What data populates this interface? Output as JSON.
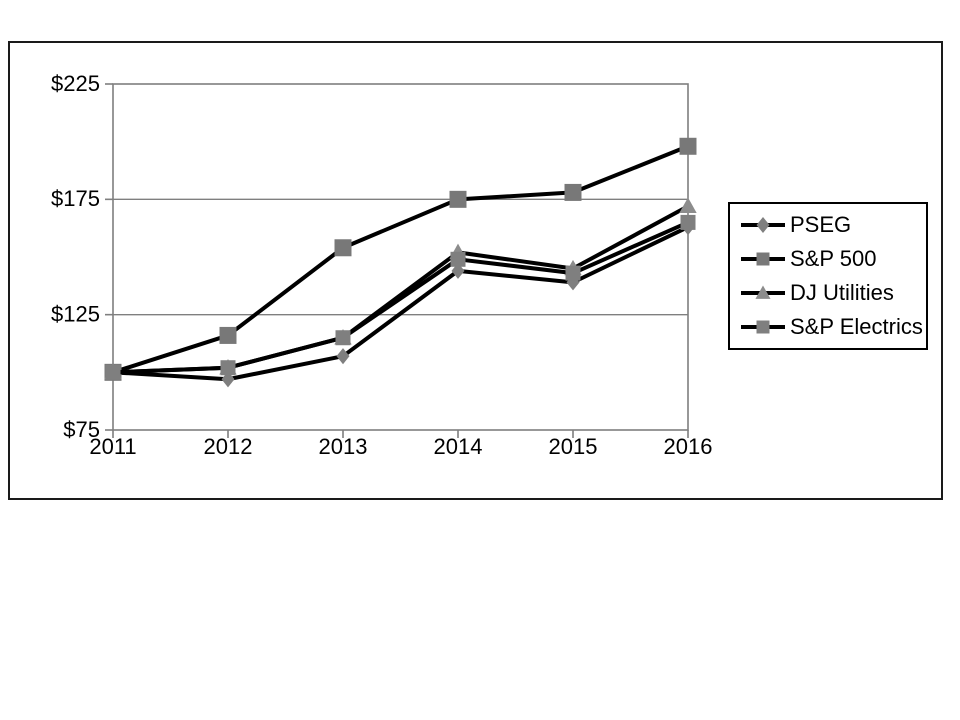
{
  "slide": {
    "background_color": "#ffffff",
    "frame_border_color": "#1a1a1a"
  },
  "chart_data": {
    "type": "line",
    "title": "",
    "xlabel": "",
    "ylabel": "",
    "x": [
      "2011",
      "2012",
      "2013",
      "2014",
      "2015",
      "2016"
    ],
    "ylim": [
      75,
      225
    ],
    "y_ticks": [
      75,
      125,
      175,
      225
    ],
    "y_tick_labels": [
      "$75",
      "$125",
      "$175",
      "$225"
    ],
    "grid": true,
    "legend_position": "right",
    "axis_color": "#7f7f7f",
    "gridline_color": "#7f7f7f",
    "line_color": "#000000",
    "text_color": "#000000",
    "series": [
      {
        "name": "PSEG",
        "marker": "diamond",
        "marker_color": "#7f7f7f",
        "values": [
          100,
          97,
          107,
          144,
          139,
          163
        ]
      },
      {
        "name": "S&P 500",
        "marker": "square",
        "marker_color": "#787878",
        "values": [
          100,
          116,
          154,
          175,
          178,
          198
        ]
      },
      {
        "name": "DJ Utilities",
        "marker": "triangle",
        "marker_color": "#8c8c8c",
        "values": [
          100,
          102,
          115,
          152,
          145,
          172
        ]
      },
      {
        "name": "S&P Electrics",
        "marker": "square",
        "marker_color": "#7f7f7f",
        "values": [
          100,
          102,
          115,
          149,
          143,
          165
        ]
      }
    ]
  }
}
